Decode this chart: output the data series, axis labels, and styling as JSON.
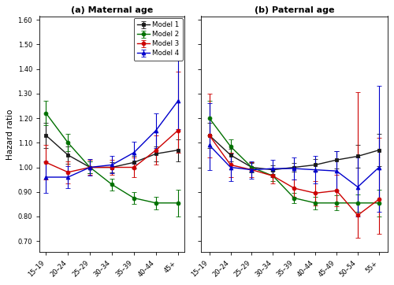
{
  "panel_a": {
    "title": "(a) Maternal age",
    "x_labels": [
      "15–19",
      "20–24",
      "25–29",
      "30–34",
      "35–39",
      "40–44",
      "45+"
    ],
    "model1": {
      "y": [
        1.13,
        1.05,
        1.0,
        1.0,
        1.02,
        1.055,
        1.07
      ],
      "yerr_lo": [
        0.05,
        0.035,
        0.025,
        0.02,
        0.025,
        0.03,
        0.045
      ],
      "yerr_hi": [
        0.05,
        0.035,
        0.025,
        0.02,
        0.025,
        0.03,
        0.045
      ]
    },
    "model2": {
      "y": [
        1.22,
        1.1,
        1.0,
        0.93,
        0.875,
        0.855,
        0.855
      ],
      "yerr_lo": [
        0.05,
        0.035,
        0.025,
        0.025,
        0.025,
        0.025,
        0.055
      ],
      "yerr_hi": [
        0.05,
        0.035,
        0.025,
        0.025,
        0.025,
        0.025,
        0.055
      ]
    },
    "model3": {
      "y": [
        1.02,
        0.98,
        1.0,
        1.0,
        1.0,
        1.07,
        1.15
      ],
      "yerr_lo": [
        0.07,
        0.045,
        0.03,
        0.03,
        0.04,
        0.06,
        0.09
      ],
      "yerr_hi": [
        0.07,
        0.045,
        0.03,
        0.03,
        0.04,
        0.06,
        0.24
      ]
    },
    "model4": {
      "y": [
        0.96,
        0.96,
        1.0,
        1.01,
        1.06,
        1.15,
        1.27
      ],
      "yerr_lo": [
        0.065,
        0.045,
        0.035,
        0.035,
        0.045,
        0.07,
        0.115
      ],
      "yerr_hi": [
        0.065,
        0.045,
        0.035,
        0.035,
        0.045,
        0.07,
        0.3
      ]
    }
  },
  "panel_b": {
    "title": "(b) Paternal age",
    "x_labels": [
      "15–19",
      "20–24",
      "25–29",
      "30–34",
      "35–39",
      "40–44",
      "45–49",
      "50–54",
      "55+"
    ],
    "model1": {
      "y": [
        1.13,
        1.05,
        1.0,
        0.99,
        1.0,
        1.01,
        1.03,
        1.045,
        1.07
      ],
      "yerr_lo": [
        0.05,
        0.025,
        0.018,
        0.018,
        0.018,
        0.025,
        0.035,
        0.045,
        0.065
      ],
      "yerr_hi": [
        0.05,
        0.025,
        0.018,
        0.018,
        0.018,
        0.025,
        0.035,
        0.045,
        0.065
      ]
    },
    "model2": {
      "y": [
        1.2,
        1.085,
        1.0,
        0.965,
        0.875,
        0.855,
        0.855,
        0.855,
        0.855
      ],
      "yerr_lo": [
        0.07,
        0.03,
        0.02,
        0.02,
        0.02,
        0.025,
        0.03,
        0.035,
        0.055
      ],
      "yerr_hi": [
        0.07,
        0.03,
        0.02,
        0.02,
        0.02,
        0.025,
        0.03,
        0.035,
        0.055
      ]
    },
    "model3": {
      "y": [
        1.13,
        1.01,
        0.99,
        0.965,
        0.915,
        0.895,
        0.905,
        0.805,
        0.87
      ],
      "yerr_lo": [
        0.09,
        0.05,
        0.03,
        0.03,
        0.035,
        0.05,
        0.065,
        0.09,
        0.14
      ],
      "yerr_hi": [
        0.17,
        0.05,
        0.03,
        0.03,
        0.035,
        0.05,
        0.065,
        0.5,
        0.25
      ]
    },
    "model4": {
      "y": [
        1.09,
        1.0,
        0.99,
        0.995,
        0.995,
        0.99,
        0.985,
        0.92,
        1.0
      ],
      "yerr_lo": [
        0.1,
        0.055,
        0.035,
        0.035,
        0.045,
        0.055,
        0.08,
        0.12,
        0.18
      ],
      "yerr_hi": [
        0.17,
        0.055,
        0.035,
        0.035,
        0.045,
        0.055,
        0.08,
        0.12,
        0.33
      ]
    }
  },
  "colors": {
    "model1": "#1a1a1a",
    "model2": "#007000",
    "model3": "#cc0000",
    "model4": "#0000cc"
  },
  "markers": {
    "model1": "s",
    "model2": "o",
    "model3": "o",
    "model4": "^"
  },
  "ylabel": "Hazard ratio",
  "ylim": [
    0.655,
    1.615
  ],
  "yticks": [
    0.7,
    0.8,
    0.9,
    1.0,
    1.1,
    1.2,
    1.3,
    1.4,
    1.5,
    1.6
  ]
}
